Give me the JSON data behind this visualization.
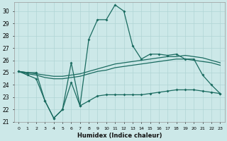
{
  "xlabel": "Humidex (Indice chaleur)",
  "bg_color": "#cce8e8",
  "line_color": "#1a6b60",
  "grid_color": "#b0d4d4",
  "xlim": [
    -0.5,
    23.5
  ],
  "ylim": [
    21,
    30.7
  ],
  "yticks": [
    21,
    22,
    23,
    24,
    25,
    26,
    27,
    28,
    29,
    30
  ],
  "xticks": [
    0,
    1,
    2,
    3,
    4,
    5,
    6,
    7,
    8,
    9,
    10,
    11,
    12,
    13,
    14,
    15,
    16,
    17,
    18,
    19,
    20,
    21,
    22,
    23
  ],
  "series1": [
    25.1,
    25.0,
    25.0,
    22.7,
    21.3,
    22.0,
    25.8,
    22.3,
    27.7,
    29.3,
    29.3,
    30.5,
    30.0,
    27.2,
    26.1,
    26.5,
    26.5,
    26.4,
    26.5,
    26.1,
    26.1,
    24.8,
    24.0,
    23.3
  ],
  "series2": [
    25.1,
    25.0,
    24.9,
    24.8,
    24.7,
    24.7,
    24.8,
    24.9,
    25.1,
    25.3,
    25.5,
    25.7,
    25.8,
    25.9,
    26.0,
    26.1,
    26.2,
    26.3,
    26.3,
    26.4,
    26.3,
    26.2,
    26.0,
    25.8
  ],
  "series3": [
    25.1,
    24.9,
    24.8,
    24.6,
    24.5,
    24.5,
    24.6,
    24.7,
    24.9,
    25.1,
    25.2,
    25.4,
    25.5,
    25.6,
    25.7,
    25.8,
    25.9,
    26.0,
    26.1,
    26.1,
    26.0,
    25.9,
    25.8,
    25.6
  ],
  "series4": [
    25.1,
    24.8,
    24.5,
    22.7,
    21.3,
    22.0,
    24.2,
    22.3,
    22.7,
    23.1,
    23.2,
    23.2,
    23.2,
    23.2,
    23.2,
    23.3,
    23.4,
    23.5,
    23.6,
    23.6,
    23.6,
    23.5,
    23.4,
    23.3
  ]
}
